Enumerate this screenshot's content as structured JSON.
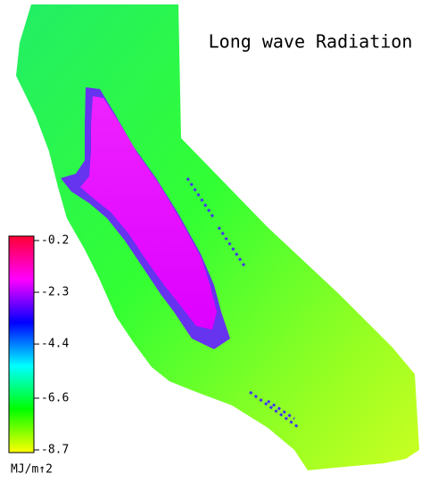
{
  "title": "Long wave Radiation",
  "colorbar": {
    "lim": [
      -8.7,
      -0.2
    ],
    "ticks": [
      -0.2,
      -2.3,
      -4.4,
      -6.6,
      -8.7
    ],
    "label": "MJ/m↑2",
    "colors": [
      "#ffff00",
      "#00ff00",
      "#00ffff",
      "#0000ff",
      "#ff00ff",
      "#ff0033"
    ]
  }
}
